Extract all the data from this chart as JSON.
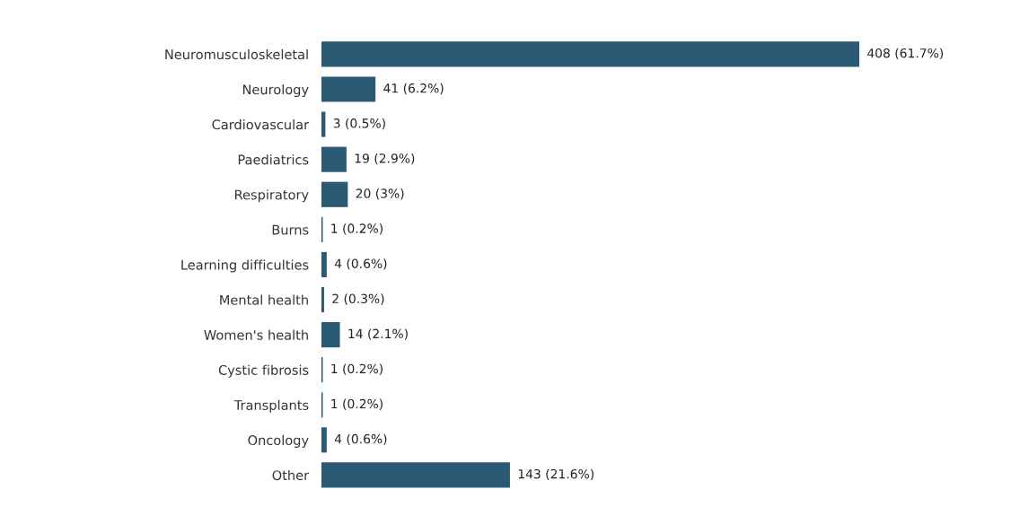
{
  "chart_data": {
    "type": "bar",
    "orientation": "horizontal",
    "categories": [
      "Neuromusculoskeletal",
      "Neurology",
      "Cardiovascular",
      "Paediatrics",
      "Respiratory",
      "Burns",
      "Learning difficulties",
      "Mental health",
      "Women's health",
      "Cystic fibrosis",
      "Transplants",
      "Oncology",
      "Other"
    ],
    "values": [
      408,
      41,
      3,
      19,
      20,
      1,
      4,
      2,
      14,
      1,
      1,
      4,
      143
    ],
    "value_labels": [
      "408 (61.7%)",
      "41 (6.2%)",
      "3 (0.5%)",
      "19 (2.9%)",
      "20 (3%)",
      "1 (0.2%)",
      "4 (0.6%)",
      "2 (0.3%)",
      "14 (2.1%)",
      "1 (0.2%)",
      "1 (0.2%)",
      "4 (0.6%)",
      "143 (21.6%)"
    ],
    "color": "#2b5b74",
    "grid": false,
    "legend": false
  }
}
